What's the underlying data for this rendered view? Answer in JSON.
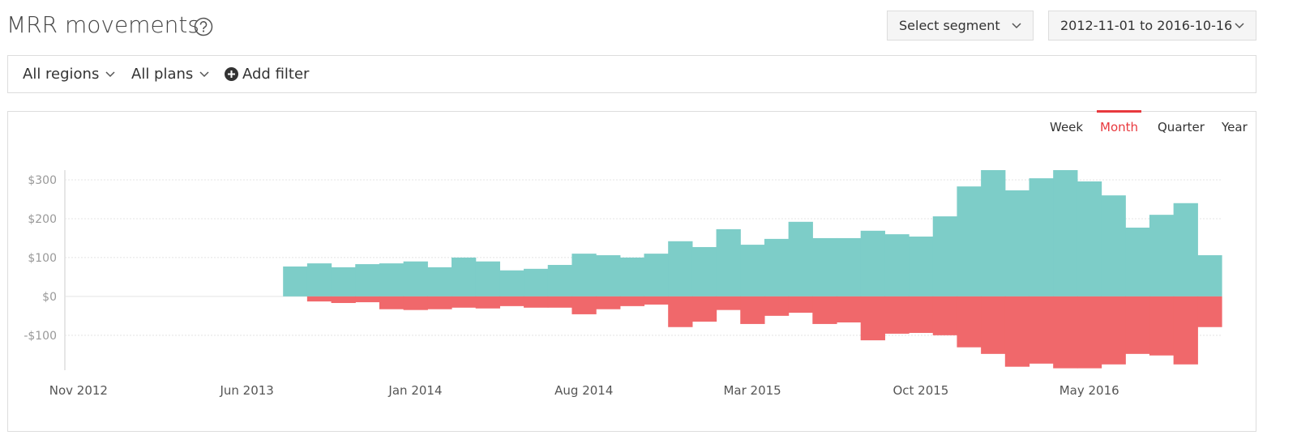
{
  "header": {
    "title": "MRR movements",
    "segment_button": "Select segment",
    "date_range": "2012-11-01 to 2016-10-16"
  },
  "filters": {
    "region": "All regions",
    "plan": "All plans",
    "add": "Add filter"
  },
  "period_tabs": [
    {
      "label": "Week",
      "selected": false
    },
    {
      "label": "Month",
      "selected": true
    },
    {
      "label": "Quarter",
      "selected": false
    },
    {
      "label": "Year",
      "selected": false
    }
  ],
  "chart_data": {
    "type": "bar",
    "stacked": true,
    "categories": [
      "Nov 2012",
      null,
      null,
      null,
      null,
      null,
      null,
      "Jun 2013",
      null,
      null,
      null,
      null,
      null,
      null,
      "Jan 2014",
      null,
      null,
      null,
      null,
      null,
      null,
      "Aug 2014",
      null,
      null,
      null,
      null,
      null,
      null,
      "Mar 2015",
      null,
      null,
      null,
      null,
      null,
      null,
      "Oct 2015",
      null,
      null,
      null,
      null,
      null,
      null,
      "May 2016",
      null,
      null,
      null,
      null,
      null
    ],
    "series": [
      {
        "color": "#7dcdc8",
        "values": [
          null,
          null,
          null,
          null,
          null,
          null,
          null,
          null,
          null,
          77,
          85,
          75,
          83,
          85,
          90,
          75,
          100,
          90,
          67,
          71,
          81,
          110,
          106,
          100,
          110,
          142,
          127,
          173,
          133,
          148,
          192,
          150,
          150,
          169,
          160,
          154,
          206,
          283,
          325,
          273,
          304,
          325,
          296,
          260,
          177,
          210,
          240,
          106
        ]
      },
      {
        "color": "#f0686b",
        "values": [
          null,
          null,
          null,
          null,
          null,
          null,
          null,
          null,
          null,
          null,
          -13,
          -17,
          -15,
          -33,
          -35,
          -33,
          -29,
          -31,
          -25,
          -29,
          -29,
          -46,
          -33,
          -25,
          -21,
          -79,
          -65,
          -35,
          -71,
          -50,
          -42,
          -71,
          -67,
          -113,
          -96,
          -94,
          -100,
          -131,
          -148,
          -181,
          -173,
          -185,
          -185,
          -175,
          -148,
          -152,
          -175,
          -79
        ]
      }
    ],
    "ylim": [
      -190,
      325
    ],
    "yticks": [
      {
        "value": -100,
        "label": "-$100"
      },
      {
        "value": 0,
        "label": "$0"
      },
      {
        "value": 100,
        "label": "$100"
      },
      {
        "value": 200,
        "label": "$200"
      },
      {
        "value": 300,
        "label": "$300"
      }
    ],
    "grid": true
  }
}
